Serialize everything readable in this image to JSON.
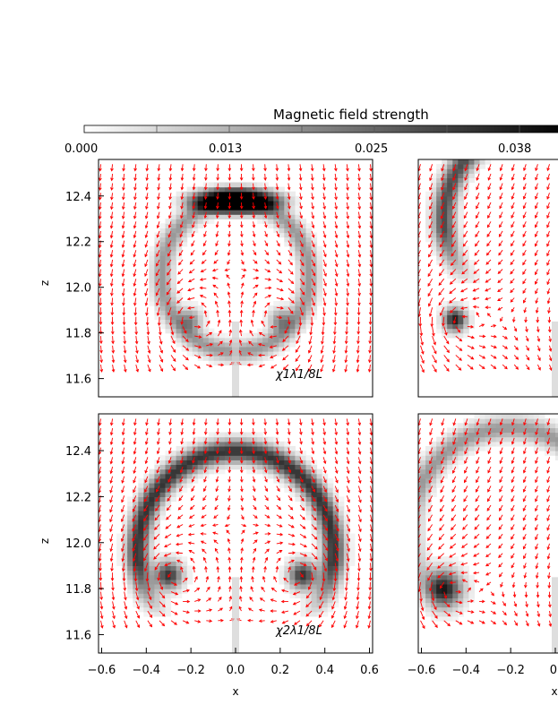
{
  "chart_data": {
    "type": "heatmap",
    "title": "Magnetic field strength",
    "colorbar": {
      "label": "Magnetic field strength",
      "ticks": [
        "0.000",
        "0.013",
        "0.025",
        "0.038"
      ],
      "range": [
        0.0,
        0.05
      ],
      "colormap": "white-to-black"
    },
    "xlabel": "x",
    "ylabel": "z",
    "xticks": [
      "-0.6",
      "-0.4",
      "-0.2",
      "0.0",
      "0.2",
      "0.4",
      "0.6"
    ],
    "xticks_right_visible": [
      "-0.6",
      "-0.4",
      "-0.2",
      "0."
    ],
    "yticks": [
      "12.4",
      "12.2",
      "12.0",
      "11.8",
      "11.6"
    ],
    "xlim": [
      -0.63,
      0.63
    ],
    "ylim": [
      11.52,
      12.56
    ],
    "overlay": "velocity vector arrows (red)",
    "arrow_color": "#ff0000",
    "panels": [
      {
        "id": "top-left",
        "annotation": "χ1λ1/8L",
        "structures": [
          {
            "shape": "cap",
            "cx": 0.0,
            "cz": 12.38,
            "rx": 0.22,
            "rz": 0.06,
            "strength": 0.045
          },
          {
            "shape": "ring",
            "cx": 0.0,
            "cz": 12.05,
            "radius": 0.33,
            "strength": 0.02
          },
          {
            "shape": "blob",
            "cx": -0.2,
            "cz": 11.86,
            "radius": 0.05,
            "strength": 0.02
          },
          {
            "shape": "blob",
            "cx": 0.2,
            "cz": 11.86,
            "radius": 0.05,
            "strength": 0.02
          }
        ]
      },
      {
        "id": "top-right",
        "annotation": "",
        "structures": [
          {
            "shape": "arc",
            "cx": -0.1,
            "cz": 12.3,
            "radius": 0.4,
            "strength": 0.035
          },
          {
            "shape": "blob",
            "cx": -0.45,
            "cz": 11.86,
            "radius": 0.05,
            "strength": 0.045
          }
        ]
      },
      {
        "id": "bottom-left",
        "annotation": "χ2λ1/8L",
        "structures": [
          {
            "shape": "arc",
            "cx": 0.0,
            "cz": 11.96,
            "radius": 0.44,
            "strength": 0.04
          },
          {
            "shape": "blob",
            "cx": -0.3,
            "cz": 11.86,
            "radius": 0.06,
            "strength": 0.04
          },
          {
            "shape": "blob",
            "cx": 0.3,
            "cz": 11.86,
            "radius": 0.06,
            "strength": 0.04
          }
        ]
      },
      {
        "id": "bottom-right",
        "annotation": "",
        "structures": [
          {
            "shape": "arc",
            "cx": -0.2,
            "cz": 12.05,
            "radius": 0.45,
            "strength": 0.02
          },
          {
            "shape": "blob",
            "cx": -0.5,
            "cz": 11.8,
            "radius": 0.08,
            "strength": 0.045
          }
        ]
      }
    ]
  }
}
